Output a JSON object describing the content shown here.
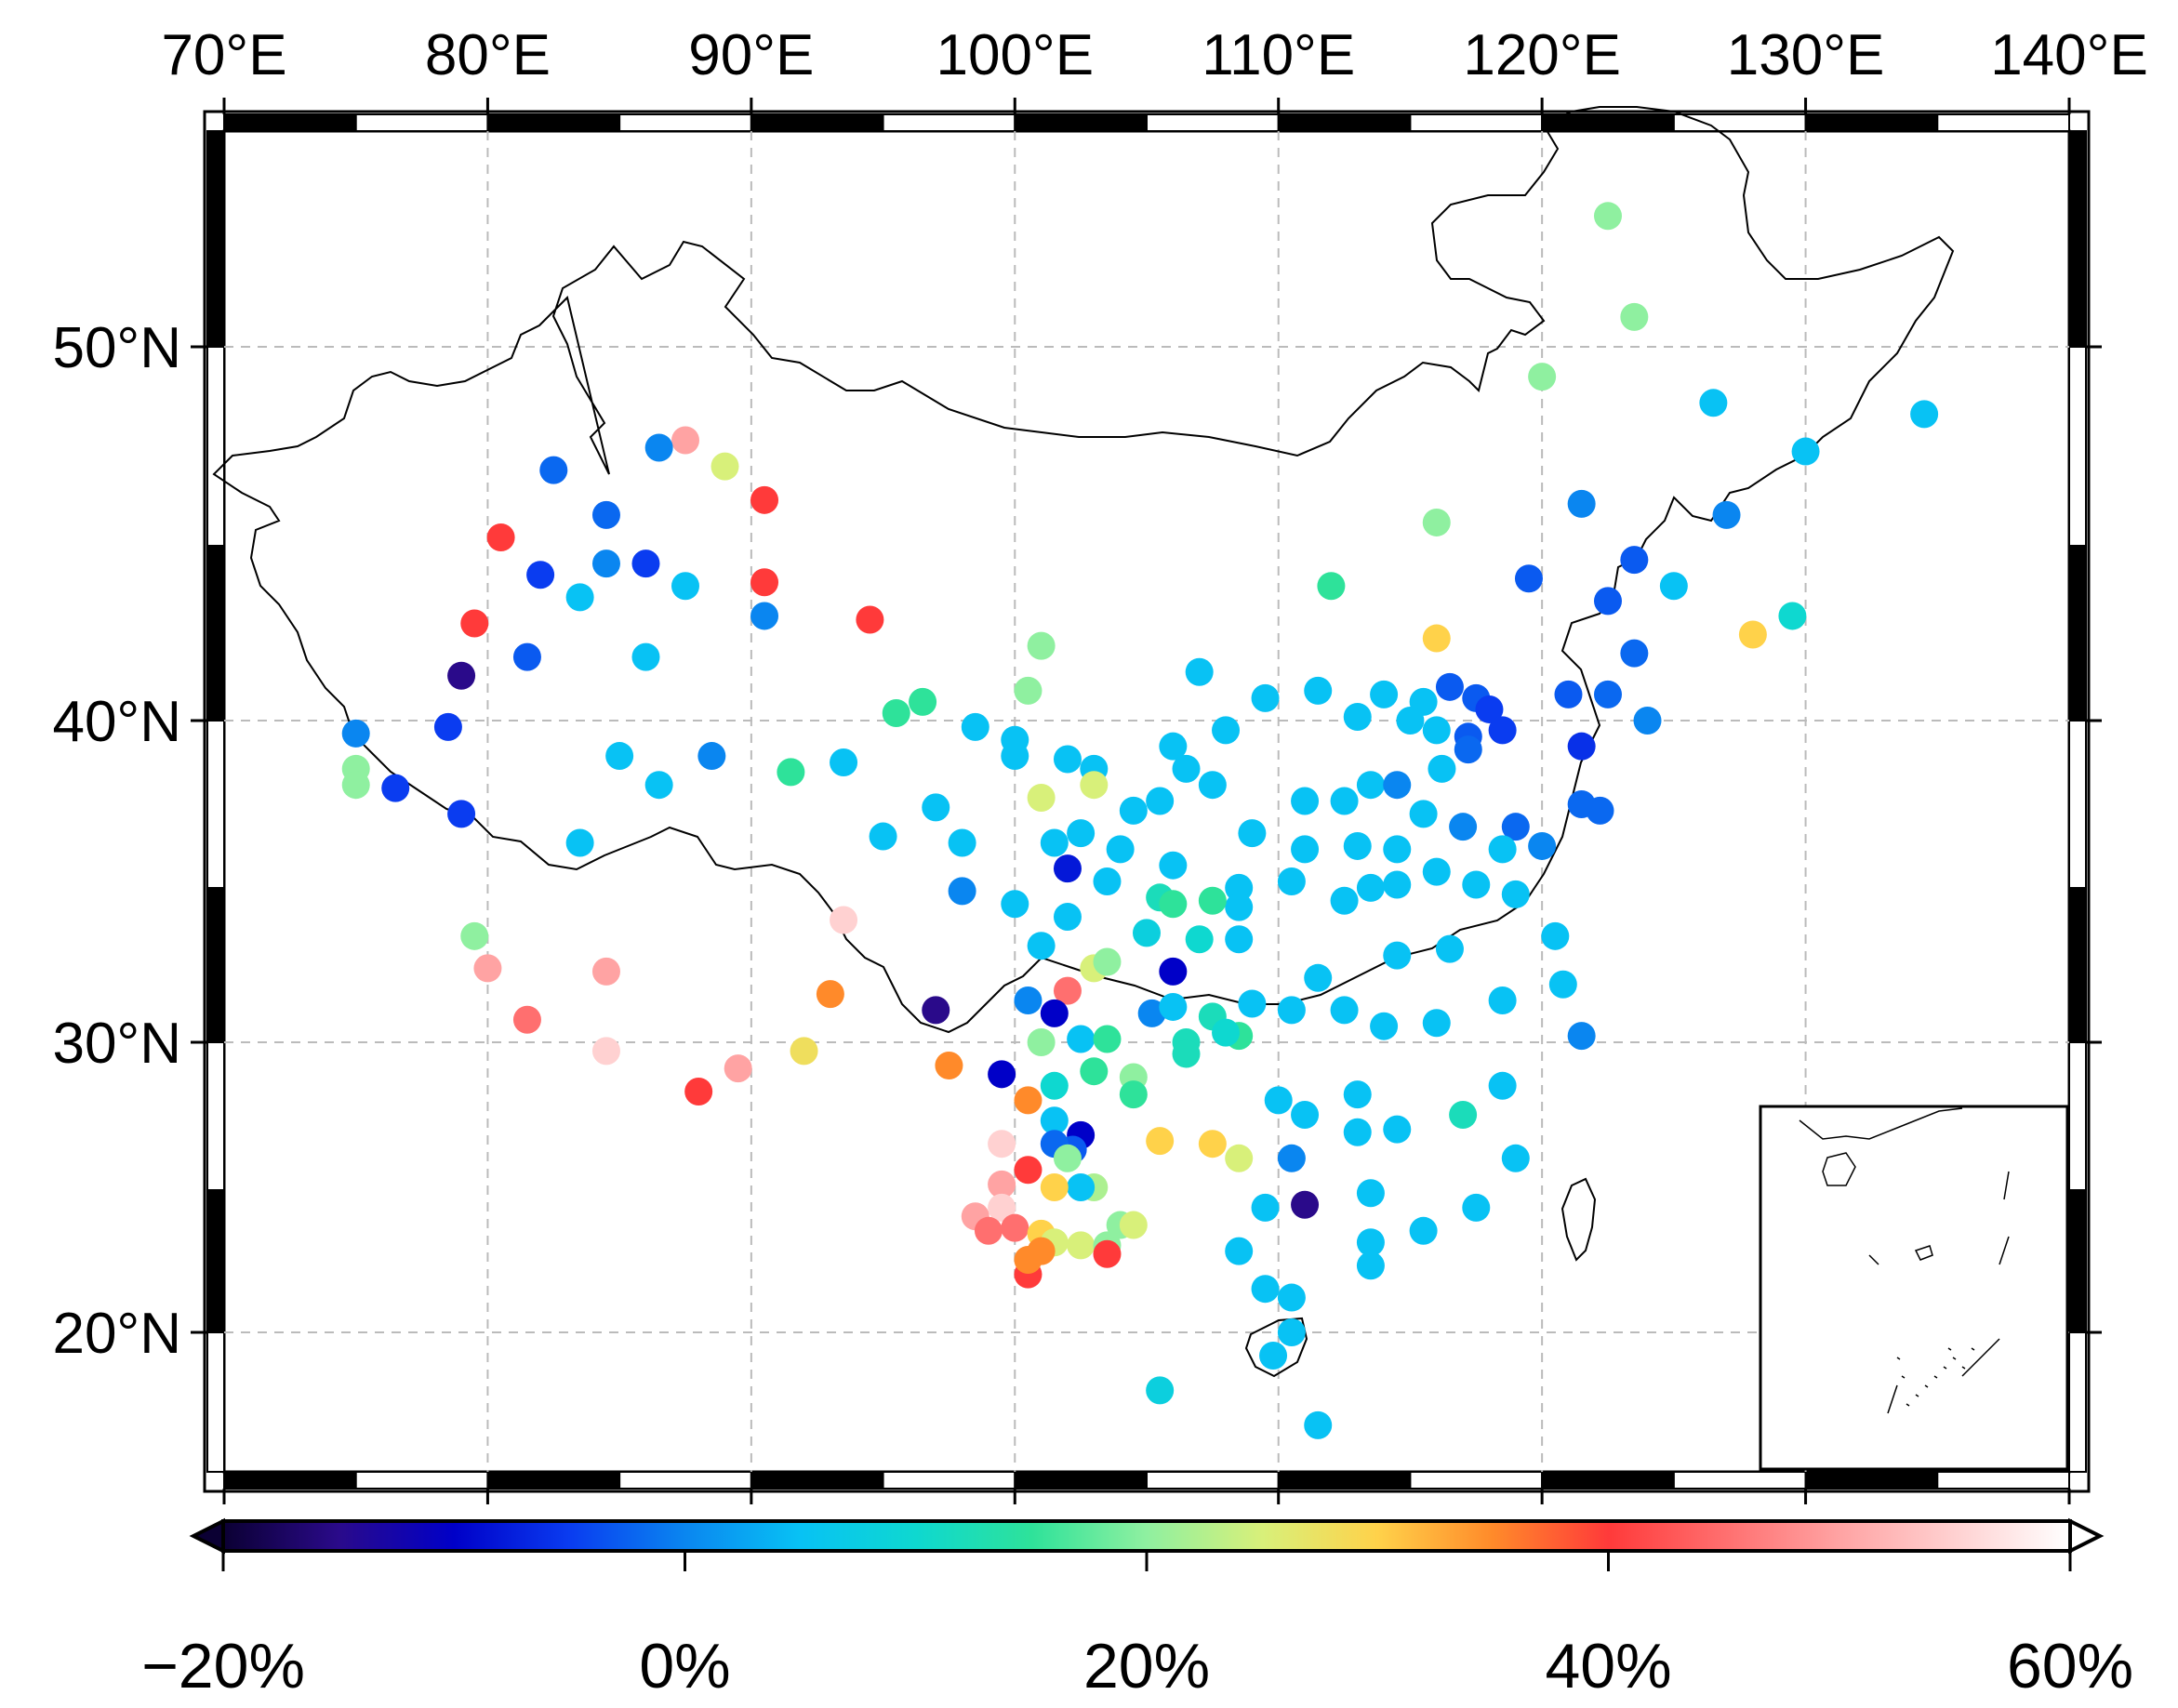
{
  "map": {
    "lon_range": [
      70,
      140
    ],
    "lat_range": [
      15,
      55
    ],
    "grid": true,
    "lon_ticks": [
      "70°E",
      "80°E",
      "90°E",
      "100°E",
      "110°E",
      "120°E",
      "130°E",
      "140°E"
    ],
    "lat_ticks": [
      "20°N",
      "30°N",
      "40°N",
      "50°N"
    ],
    "inset": "South China Sea islands (bottom-right)"
  },
  "colorbar": {
    "min": -20,
    "max": 60,
    "tick_labels": [
      "−20%",
      "0%",
      "20%",
      "40%",
      "60%"
    ],
    "stops": [
      {
        "v": -20,
        "c": "#0b0033"
      },
      {
        "v": -15,
        "c": "#2a0a8a"
      },
      {
        "v": -10,
        "c": "#0000c8"
      },
      {
        "v": -5,
        "c": "#0a3cf0"
      },
      {
        "v": 0,
        "c": "#0a86f0"
      },
      {
        "v": 5,
        "c": "#08c2f4"
      },
      {
        "v": 10,
        "c": "#0ed8d0"
      },
      {
        "v": 15,
        "c": "#2ee29a"
      },
      {
        "v": 20,
        "c": "#8ff0a0"
      },
      {
        "v": 25,
        "c": "#d8f07a"
      },
      {
        "v": 30,
        "c": "#ffd24a"
      },
      {
        "v": 35,
        "c": "#ff8a2a"
      },
      {
        "v": 40,
        "c": "#ff3a3a"
      },
      {
        "v": 50,
        "c": "#ffa3a3"
      },
      {
        "v": 60,
        "c": "#ffffff"
      }
    ]
  },
  "stations": [
    [
      122.5,
      53.5,
      20
    ],
    [
      123.5,
      50.8,
      20
    ],
    [
      120.0,
      49.2,
      20
    ],
    [
      126.5,
      48.5,
      5
    ],
    [
      130.0,
      47.2,
      5
    ],
    [
      134.5,
      48.2,
      5
    ],
    [
      121.5,
      45.8,
      0
    ],
    [
      127.0,
      45.5,
      0
    ],
    [
      125.0,
      43.6,
      5
    ],
    [
      123.5,
      44.3,
      -3
    ],
    [
      122.5,
      43.2,
      -3
    ],
    [
      119.5,
      43.8,
      -3
    ],
    [
      116.0,
      45.3,
      20
    ],
    [
      112.0,
      43.6,
      15
    ],
    [
      116.0,
      42.2,
      30
    ],
    [
      128.0,
      42.3,
      30
    ],
    [
      129.5,
      42.8,
      10
    ],
    [
      123.5,
      41.8,
      -2
    ],
    [
      122.5,
      40.7,
      -2
    ],
    [
      121.0,
      40.7,
      -3
    ],
    [
      124.0,
      40.0,
      0
    ],
    [
      121.5,
      39.2,
      -6
    ],
    [
      121.5,
      37.4,
      -2
    ],
    [
      122.2,
      37.2,
      -2
    ],
    [
      119.0,
      36.7,
      -2
    ],
    [
      120.0,
      36.1,
      0
    ],
    [
      119.0,
      34.6,
      5
    ],
    [
      120.5,
      33.3,
      5
    ],
    [
      118.5,
      31.3,
      5
    ],
    [
      120.8,
      31.8,
      5
    ],
    [
      121.5,
      30.2,
      0
    ],
    [
      116.5,
      40.9,
      -3
    ],
    [
      117.5,
      40.6,
      -3
    ],
    [
      118.0,
      40.3,
      -5
    ],
    [
      115.5,
      40.5,
      5
    ],
    [
      115.0,
      40.0,
      5
    ],
    [
      116.0,
      39.7,
      5
    ],
    [
      117.2,
      39.5,
      -3
    ],
    [
      118.5,
      39.7,
      -5
    ],
    [
      117.2,
      39.1,
      -2
    ],
    [
      116.2,
      38.5,
      5
    ],
    [
      115.5,
      37.1,
      5
    ],
    [
      117.0,
      36.7,
      0
    ],
    [
      118.5,
      36.0,
      5
    ],
    [
      117.5,
      34.9,
      5
    ],
    [
      116.0,
      35.3,
      5
    ],
    [
      114.5,
      36.0,
      5
    ],
    [
      114.5,
      34.9,
      5
    ],
    [
      113.5,
      34.8,
      5
    ],
    [
      113.0,
      36.1,
      5
    ],
    [
      112.5,
      37.5,
      5
    ],
    [
      113.5,
      38.0,
      5
    ],
    [
      114.5,
      38.0,
      0
    ],
    [
      113.0,
      40.1,
      5
    ],
    [
      114.0,
      40.7,
      5
    ],
    [
      111.5,
      40.8,
      5
    ],
    [
      109.5,
      40.6,
      5
    ],
    [
      111.0,
      37.5,
      5
    ],
    [
      111.0,
      36.0,
      5
    ],
    [
      110.5,
      35.0,
      5
    ],
    [
      112.5,
      34.4,
      5
    ],
    [
      114.5,
      32.7,
      5
    ],
    [
      116.5,
      32.9,
      5
    ],
    [
      111.5,
      32.0,
      5
    ],
    [
      110.5,
      31.0,
      5
    ],
    [
      112.5,
      31.0,
      5
    ],
    [
      114.0,
      30.5,
      5
    ],
    [
      116.0,
      30.6,
      5
    ],
    [
      117.0,
      27.5,
      12
    ],
    [
      118.5,
      28.5,
      5
    ],
    [
      119.0,
      26.0,
      5
    ],
    [
      117.5,
      24.3,
      5
    ],
    [
      115.5,
      23.5,
      5
    ],
    [
      113.5,
      22.3,
      5
    ],
    [
      113.5,
      23.1,
      5
    ],
    [
      113.5,
      24.8,
      5
    ],
    [
      113.0,
      26.9,
      5
    ],
    [
      114.5,
      27.0,
      5
    ],
    [
      110.0,
      28.0,
      5
    ],
    [
      111.0,
      27.5,
      5
    ],
    [
      110.5,
      26.0,
      0
    ],
    [
      111.0,
      24.4,
      -15
    ],
    [
      109.5,
      24.3,
      5
    ],
    [
      108.5,
      22.8,
      5
    ],
    [
      109.5,
      21.5,
      5
    ],
    [
      110.5,
      21.2,
      5
    ],
    [
      110.5,
      20.0,
      5
    ],
    [
      109.8,
      19.2,
      5
    ],
    [
      111.5,
      16.8,
      5
    ],
    [
      105.5,
      18.0,
      8
    ],
    [
      107.0,
      41.3,
      5
    ],
    [
      108.0,
      39.7,
      5
    ],
    [
      106.0,
      39.2,
      5
    ],
    [
      107.5,
      38.0,
      5
    ],
    [
      106.5,
      38.5,
      5
    ],
    [
      109.0,
      36.5,
      5
    ],
    [
      108.5,
      34.8,
      5
    ],
    [
      108.5,
      34.2,
      5
    ],
    [
      108.5,
      33.2,
      5
    ],
    [
      107.0,
      33.2,
      10
    ],
    [
      106.0,
      35.5,
      5
    ],
    [
      105.5,
      37.5,
      5
    ],
    [
      104.5,
      37.2,
      5
    ],
    [
      104.0,
      36.0,
      5
    ],
    [
      103.5,
      35.0,
      5
    ],
    [
      105.5,
      34.5,
      12
    ],
    [
      106.0,
      34.3,
      15
    ],
    [
      107.5,
      34.4,
      15
    ],
    [
      105.0,
      33.4,
      8
    ],
    [
      106.0,
      32.2,
      -10
    ],
    [
      105.2,
      30.9,
      0
    ],
    [
      106.0,
      31.1,
      5
    ],
    [
      106.5,
      30.0,
      12
    ],
    [
      108.5,
      30.2,
      15
    ],
    [
      107.5,
      30.8,
      12
    ],
    [
      106.5,
      29.6,
      12
    ],
    [
      102.0,
      38.8,
      5
    ],
    [
      103.0,
      38.5,
      5
    ],
    [
      101.5,
      36.2,
      5
    ],
    [
      102.5,
      36.5,
      5
    ],
    [
      102.0,
      35.4,
      -8
    ],
    [
      100.0,
      38.9,
      5
    ],
    [
      100.0,
      39.4,
      5
    ],
    [
      100.5,
      40.8,
      20
    ],
    [
      101.0,
      42.0,
      20
    ],
    [
      98.5,
      39.8,
      5
    ],
    [
      97.0,
      37.3,
      5
    ],
    [
      98.0,
      36.2,
      5
    ],
    [
      98.0,
      34.7,
      0
    ],
    [
      100.0,
      34.3,
      5
    ],
    [
      101.0,
      33.0,
      5
    ],
    [
      102.0,
      33.9,
      5
    ],
    [
      100.5,
      31.3,
      0
    ],
    [
      101.0,
      30.0,
      20
    ],
    [
      102.5,
      30.1,
      5
    ],
    [
      103.5,
      30.1,
      15
    ],
    [
      103.0,
      29.0,
      15
    ],
    [
      104.5,
      28.8,
      20
    ],
    [
      104.5,
      28.2,
      15
    ],
    [
      105.5,
      26.6,
      30
    ],
    [
      107.5,
      26.5,
      30
    ],
    [
      108.5,
      26.0,
      25
    ],
    [
      103.0,
      32.3,
      25
    ],
    [
      103.5,
      32.5,
      20
    ],
    [
      102.0,
      31.6,
      45
    ],
    [
      101.5,
      30.9,
      -10
    ],
    [
      99.5,
      28.9,
      -10
    ],
    [
      100.5,
      28.0,
      35
    ],
    [
      101.5,
      27.3,
      5
    ],
    [
      102.5,
      26.8,
      -10
    ],
    [
      102.2,
      26.3,
      -3
    ],
    [
      101.5,
      26.5,
      -2
    ],
    [
      103.0,
      25.0,
      22
    ],
    [
      102.5,
      25.0,
      5
    ],
    [
      101.5,
      25.0,
      30
    ],
    [
      100.5,
      25.6,
      40
    ],
    [
      99.5,
      25.1,
      50
    ],
    [
      99.5,
      24.3,
      55
    ],
    [
      98.5,
      24.0,
      50
    ],
    [
      99.0,
      23.5,
      45
    ],
    [
      100.0,
      23.6,
      45
    ],
    [
      101.0,
      23.4,
      30
    ],
    [
      101.5,
      23.1,
      25
    ],
    [
      102.5,
      23.0,
      25
    ],
    [
      103.5,
      23.0,
      20
    ],
    [
      104.0,
      23.7,
      20
    ],
    [
      104.5,
      23.7,
      25
    ],
    [
      103.5,
      22.7,
      40
    ],
    [
      101.0,
      22.8,
      35
    ],
    [
      100.5,
      22.0,
      40
    ],
    [
      100.5,
      22.5,
      35
    ],
    [
      99.5,
      26.5,
      55
    ],
    [
      102.0,
      26.0,
      20
    ],
    [
      101.5,
      28.5,
      10
    ],
    [
      97.0,
      31.0,
      -15
    ],
    [
      97.5,
      29.2,
      35
    ],
    [
      92.0,
      29.7,
      28
    ],
    [
      93.0,
      31.5,
      35
    ],
    [
      88.0,
      28.3,
      40
    ],
    [
      89.5,
      29.1,
      50
    ],
    [
      88.5,
      31.5,
      60
    ],
    [
      84.5,
      32.2,
      50
    ],
    [
      84.5,
      29.7,
      55
    ],
    [
      80.0,
      32.3,
      50
    ],
    [
      81.5,
      30.7,
      45
    ],
    [
      79.5,
      33.3,
      20
    ],
    [
      93.5,
      33.8,
      55
    ],
    [
      87.5,
      47.5,
      50
    ],
    [
      89.0,
      46.8,
      25
    ],
    [
      90.5,
      45.9,
      40
    ],
    [
      86.5,
      47.3,
      0
    ],
    [
      82.5,
      46.7,
      -2
    ],
    [
      84.5,
      45.5,
      -2
    ],
    [
      80.5,
      44.9,
      40
    ],
    [
      82.0,
      43.9,
      -5
    ],
    [
      84.5,
      44.2,
      0
    ],
    [
      86.0,
      44.2,
      -5
    ],
    [
      87.5,
      43.6,
      5
    ],
    [
      90.5,
      43.7,
      40
    ],
    [
      90.5,
      42.8,
      0
    ],
    [
      94.5,
      42.7,
      40
    ],
    [
      83.5,
      43.3,
      5
    ],
    [
      79.5,
      42.6,
      40
    ],
    [
      81.5,
      41.7,
      -3
    ],
    [
      86.0,
      41.7,
      5
    ],
    [
      79.0,
      41.2,
      -15
    ],
    [
      75.0,
      39.6,
      0
    ],
    [
      75.0,
      38.5,
      20
    ],
    [
      75.0,
      38.0,
      20
    ],
    [
      78.5,
      39.8,
      -5
    ],
    [
      76.5,
      37.9,
      -5
    ],
    [
      79.0,
      37.1,
      -5
    ],
    [
      85.0,
      38.9,
      5
    ],
    [
      86.5,
      38.0,
      5
    ],
    [
      88.5,
      38.9,
      0
    ],
    [
      91.5,
      38.4,
      15
    ],
    [
      93.5,
      38.7,
      5
    ],
    [
      95.5,
      40.2,
      15
    ],
    [
      96.5,
      40.5,
      15
    ],
    [
      95.0,
      36.4,
      5
    ],
    [
      83.5,
      36.2,
      5
    ],
    [
      101.0,
      37.6,
      25
    ],
    [
      103.0,
      38.0,
      25
    ],
    [
      108.0,
      30.3,
      10
    ],
    [
      109.0,
      31.2,
      5
    ],
    [
      113.0,
      28.2,
      5
    ]
  ]
}
